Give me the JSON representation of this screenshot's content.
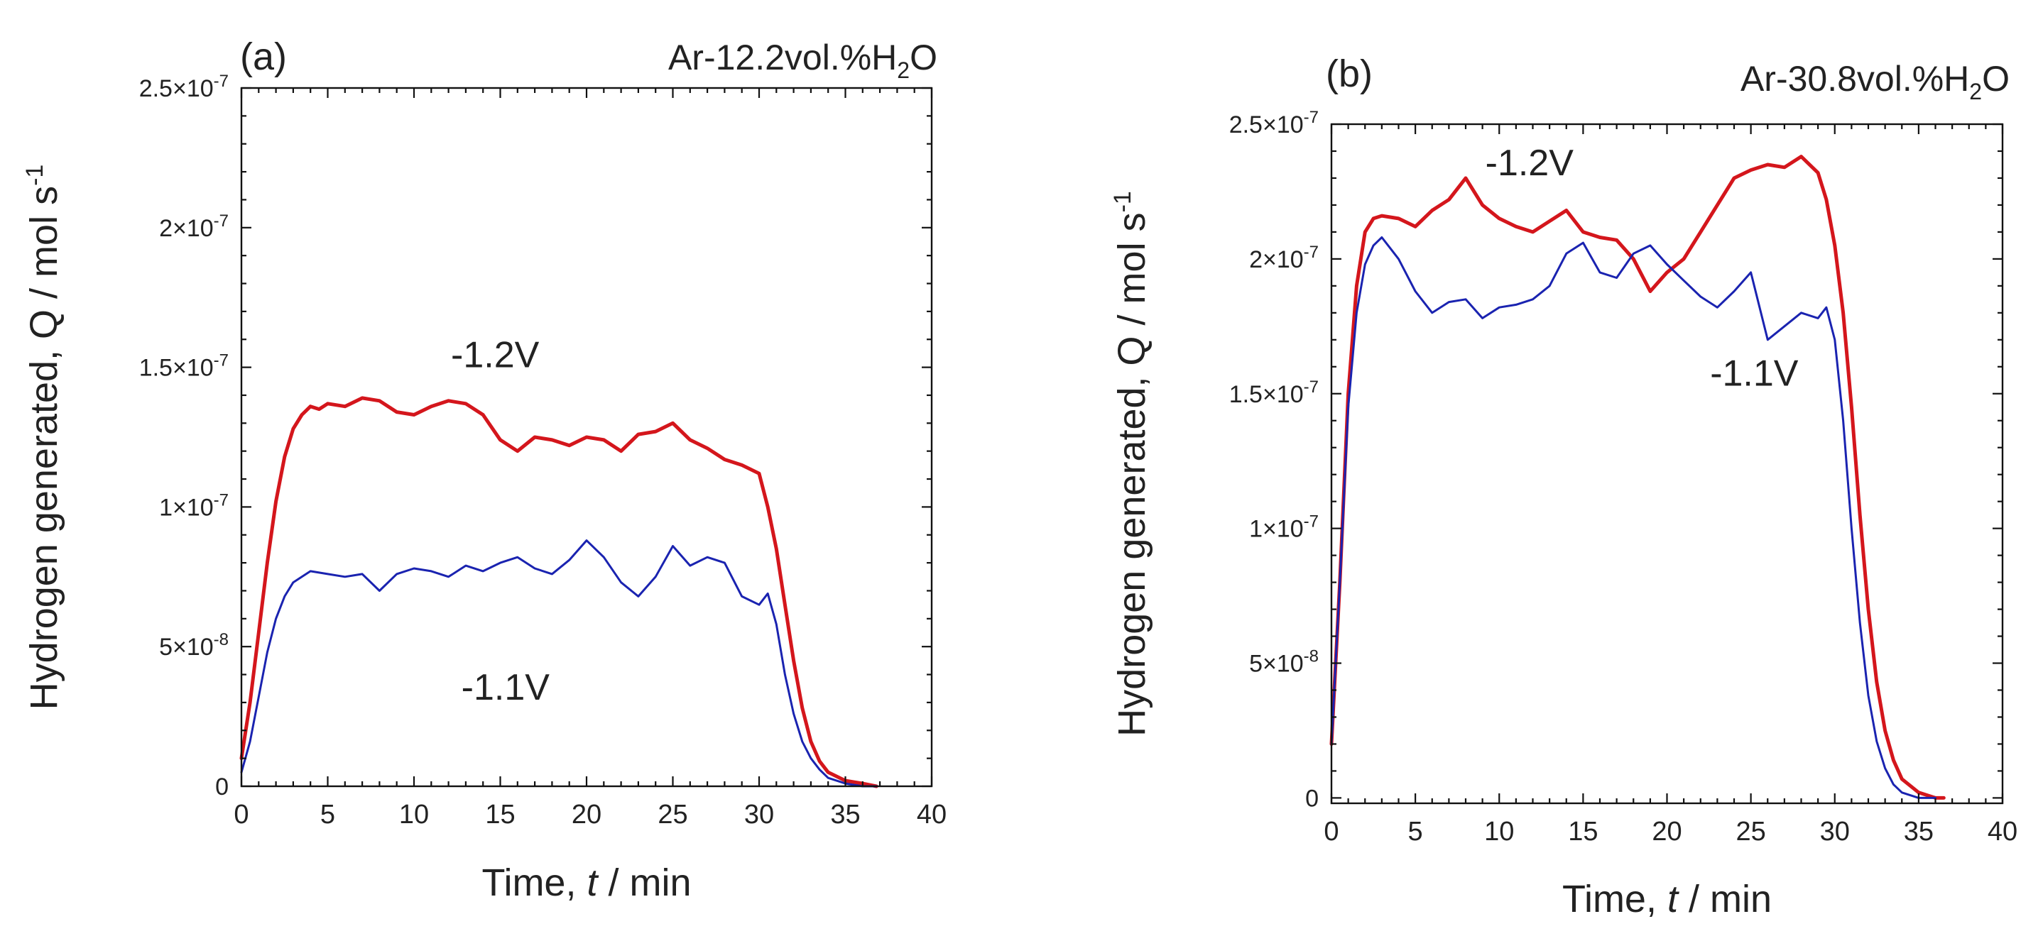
{
  "chart_data": [
    {
      "type": "line",
      "panel_label": "(a)",
      "condition": {
        "prefix": "Ar-12.2vol.%H",
        "sub": "2",
        "suffix": "O"
      },
      "xlabel": {
        "pre": "Time, ",
        "var": "t",
        "post": " / min"
      },
      "ylabel": {
        "main": "Hydrogen generated, Q / mol s",
        "sup": "-1"
      },
      "xlim": [
        0,
        40
      ],
      "ylim": [
        0,
        2.5e-07
      ],
      "xticks": [
        0,
        5,
        10,
        15,
        20,
        25,
        30,
        35,
        40
      ],
      "yticks": [
        {
          "value": 0,
          "label": "0",
          "exp": ""
        },
        {
          "value": 5e-08,
          "label": "5×10",
          "exp": "-8"
        },
        {
          "value": 1e-07,
          "label": "1×10",
          "exp": "-7"
        },
        {
          "value": 1.5e-07,
          "label": "1.5×10",
          "exp": "-7"
        },
        {
          "value": 2e-07,
          "label": "2×10",
          "exp": "-7"
        },
        {
          "value": 2.5e-07,
          "label": "2.5×10",
          "exp": "-7"
        }
      ],
      "series": [
        {
          "name": "-1.2V",
          "color": "#d4161c",
          "width": 5,
          "label_pos": [
            14.7,
            1.5e-07
          ],
          "x": [
            0,
            0.5,
            1,
            1.5,
            2,
            2.5,
            3,
            3.5,
            4,
            4.5,
            5,
            6,
            7,
            8,
            9,
            10,
            11,
            12,
            13,
            14,
            15,
            16,
            17,
            18,
            19,
            20,
            21,
            22,
            23,
            24,
            25,
            26,
            27,
            28,
            29,
            30,
            30.5,
            31,
            31.5,
            32,
            32.5,
            33,
            33.5,
            34,
            35,
            36,
            36.8
          ],
          "y": [
            1e-08,
            3e-08,
            5.5e-08,
            8e-08,
            1.02e-07,
            1.18e-07,
            1.28e-07,
            1.33e-07,
            1.36e-07,
            1.35e-07,
            1.37e-07,
            1.36e-07,
            1.39e-07,
            1.38e-07,
            1.34e-07,
            1.33e-07,
            1.36e-07,
            1.38e-07,
            1.37e-07,
            1.33e-07,
            1.24e-07,
            1.2e-07,
            1.25e-07,
            1.24e-07,
            1.22e-07,
            1.25e-07,
            1.24e-07,
            1.2e-07,
            1.26e-07,
            1.27e-07,
            1.3e-07,
            1.24e-07,
            1.21e-07,
            1.17e-07,
            1.15e-07,
            1.12e-07,
            1e-07,
            8.5e-08,
            6.5e-08,
            4.5e-08,
            2.8e-08,
            1.6e-08,
            9e-09,
            5e-09,
            2e-09,
            1e-09,
            0
          ]
        },
        {
          "name": "-1.1V",
          "color": "#1a23b0",
          "width": 3,
          "label_pos": [
            15.3,
            3.1e-08
          ],
          "x": [
            0,
            0.5,
            1,
            1.5,
            2,
            2.5,
            3,
            3.5,
            4,
            5,
            6,
            7,
            8,
            9,
            10,
            11,
            12,
            13,
            14,
            15,
            16,
            17,
            18,
            19,
            20,
            21,
            22,
            23,
            24,
            25,
            26,
            27,
            28,
            29,
            30,
            30.5,
            31,
            31.5,
            32,
            32.5,
            33,
            33.5,
            34,
            35,
            36,
            36.8
          ],
          "y": [
            5e-09,
            1.6e-08,
            3.2e-08,
            4.8e-08,
            6e-08,
            6.8e-08,
            7.3e-08,
            7.5e-08,
            7.7e-08,
            7.6e-08,
            7.5e-08,
            7.6e-08,
            7e-08,
            7.6e-08,
            7.8e-08,
            7.7e-08,
            7.5e-08,
            7.9e-08,
            7.7e-08,
            8e-08,
            8.2e-08,
            7.8e-08,
            7.6e-08,
            8.1e-08,
            8.8e-08,
            8.2e-08,
            7.3e-08,
            6.8e-08,
            7.5e-08,
            8.6e-08,
            7.9e-08,
            8.2e-08,
            8e-08,
            6.8e-08,
            6.5e-08,
            6.9e-08,
            5.8e-08,
            4e-08,
            2.6e-08,
            1.6e-08,
            1e-08,
            6e-09,
            3e-09,
            1e-09,
            0,
            0
          ]
        }
      ]
    },
    {
      "type": "line",
      "panel_label": "(b)",
      "condition": {
        "prefix": "Ar-30.8vol.%H",
        "sub": "2",
        "suffix": "O"
      },
      "xlabel": {
        "pre": "Time, ",
        "var": "t",
        "post": " / min"
      },
      "ylabel": {
        "main": "Hydrogen generated, Q / mol s",
        "sup": "-1"
      },
      "xlim": [
        0,
        40
      ],
      "ylim": [
        -2e-09,
        2.5e-07
      ],
      "xticks": [
        0,
        5,
        10,
        15,
        20,
        25,
        30,
        35,
        40
      ],
      "yticks": [
        {
          "value": 0,
          "label": "0",
          "exp": ""
        },
        {
          "value": 5e-08,
          "label": "5×10",
          "exp": "-8"
        },
        {
          "value": 1e-07,
          "label": "1×10",
          "exp": "-7"
        },
        {
          "value": 1.5e-07,
          "label": "1.5×10",
          "exp": "-7"
        },
        {
          "value": 2e-07,
          "label": "2×10",
          "exp": "-7"
        },
        {
          "value": 2.5e-07,
          "label": "2.5×10",
          "exp": "-7"
        }
      ],
      "series": [
        {
          "name": "-1.2V",
          "color": "#d4161c",
          "width": 5,
          "label_pos": [
            11.8,
            2.31e-07
          ],
          "x": [
            0,
            0.5,
            1,
            1.5,
            2,
            2.5,
            3,
            4,
            5,
            6,
            7,
            8,
            9,
            10,
            11,
            12,
            13,
            14,
            15,
            16,
            17,
            18,
            19,
            20,
            21,
            22,
            23,
            24,
            25,
            26,
            27,
            28,
            29,
            29.5,
            30,
            30.5,
            31,
            31.5,
            32,
            32.5,
            33,
            33.5,
            34,
            35,
            36,
            36.5
          ],
          "y": [
            2e-08,
            8e-08,
            1.5e-07,
            1.9e-07,
            2.1e-07,
            2.15e-07,
            2.16e-07,
            2.15e-07,
            2.12e-07,
            2.18e-07,
            2.22e-07,
            2.3e-07,
            2.2e-07,
            2.15e-07,
            2.12e-07,
            2.1e-07,
            2.14e-07,
            2.18e-07,
            2.1e-07,
            2.08e-07,
            2.07e-07,
            2e-07,
            1.88e-07,
            1.95e-07,
            2e-07,
            2.1e-07,
            2.2e-07,
            2.3e-07,
            2.33e-07,
            2.35e-07,
            2.34e-07,
            2.38e-07,
            2.32e-07,
            2.22e-07,
            2.05e-07,
            1.8e-07,
            1.45e-07,
            1.05e-07,
            7e-08,
            4.3e-08,
            2.5e-08,
            1.4e-08,
            7e-09,
            2e-09,
            0,
            0
          ]
        },
        {
          "name": "-1.1V",
          "color": "#1a23b0",
          "width": 3,
          "label_pos": [
            25.2,
            1.53e-07
          ],
          "x": [
            0,
            0.5,
            1,
            1.5,
            2,
            2.5,
            3,
            3.5,
            4,
            5,
            6,
            7,
            8,
            9,
            10,
            11,
            12,
            13,
            14,
            15,
            16,
            17,
            18,
            19,
            20,
            21,
            22,
            23,
            24,
            25,
            26,
            27,
            28,
            29,
            29.5,
            30,
            30.5,
            31,
            31.5,
            32,
            32.5,
            33,
            33.5,
            34,
            35,
            36
          ],
          "y": [
            2e-08,
            8e-08,
            1.45e-07,
            1.8e-07,
            1.98e-07,
            2.05e-07,
            2.08e-07,
            2.04e-07,
            2e-07,
            1.88e-07,
            1.8e-07,
            1.84e-07,
            1.85e-07,
            1.78e-07,
            1.82e-07,
            1.83e-07,
            1.85e-07,
            1.9e-07,
            2.02e-07,
            2.06e-07,
            1.95e-07,
            1.93e-07,
            2.02e-07,
            2.05e-07,
            1.98e-07,
            1.92e-07,
            1.86e-07,
            1.82e-07,
            1.88e-07,
            1.95e-07,
            1.7e-07,
            1.75e-07,
            1.8e-07,
            1.78e-07,
            1.82e-07,
            1.7e-07,
            1.4e-07,
            1e-07,
            6.5e-08,
            3.8e-08,
            2.1e-08,
            1.1e-08,
            5e-09,
            2e-09,
            0,
            0
          ]
        }
      ]
    }
  ]
}
